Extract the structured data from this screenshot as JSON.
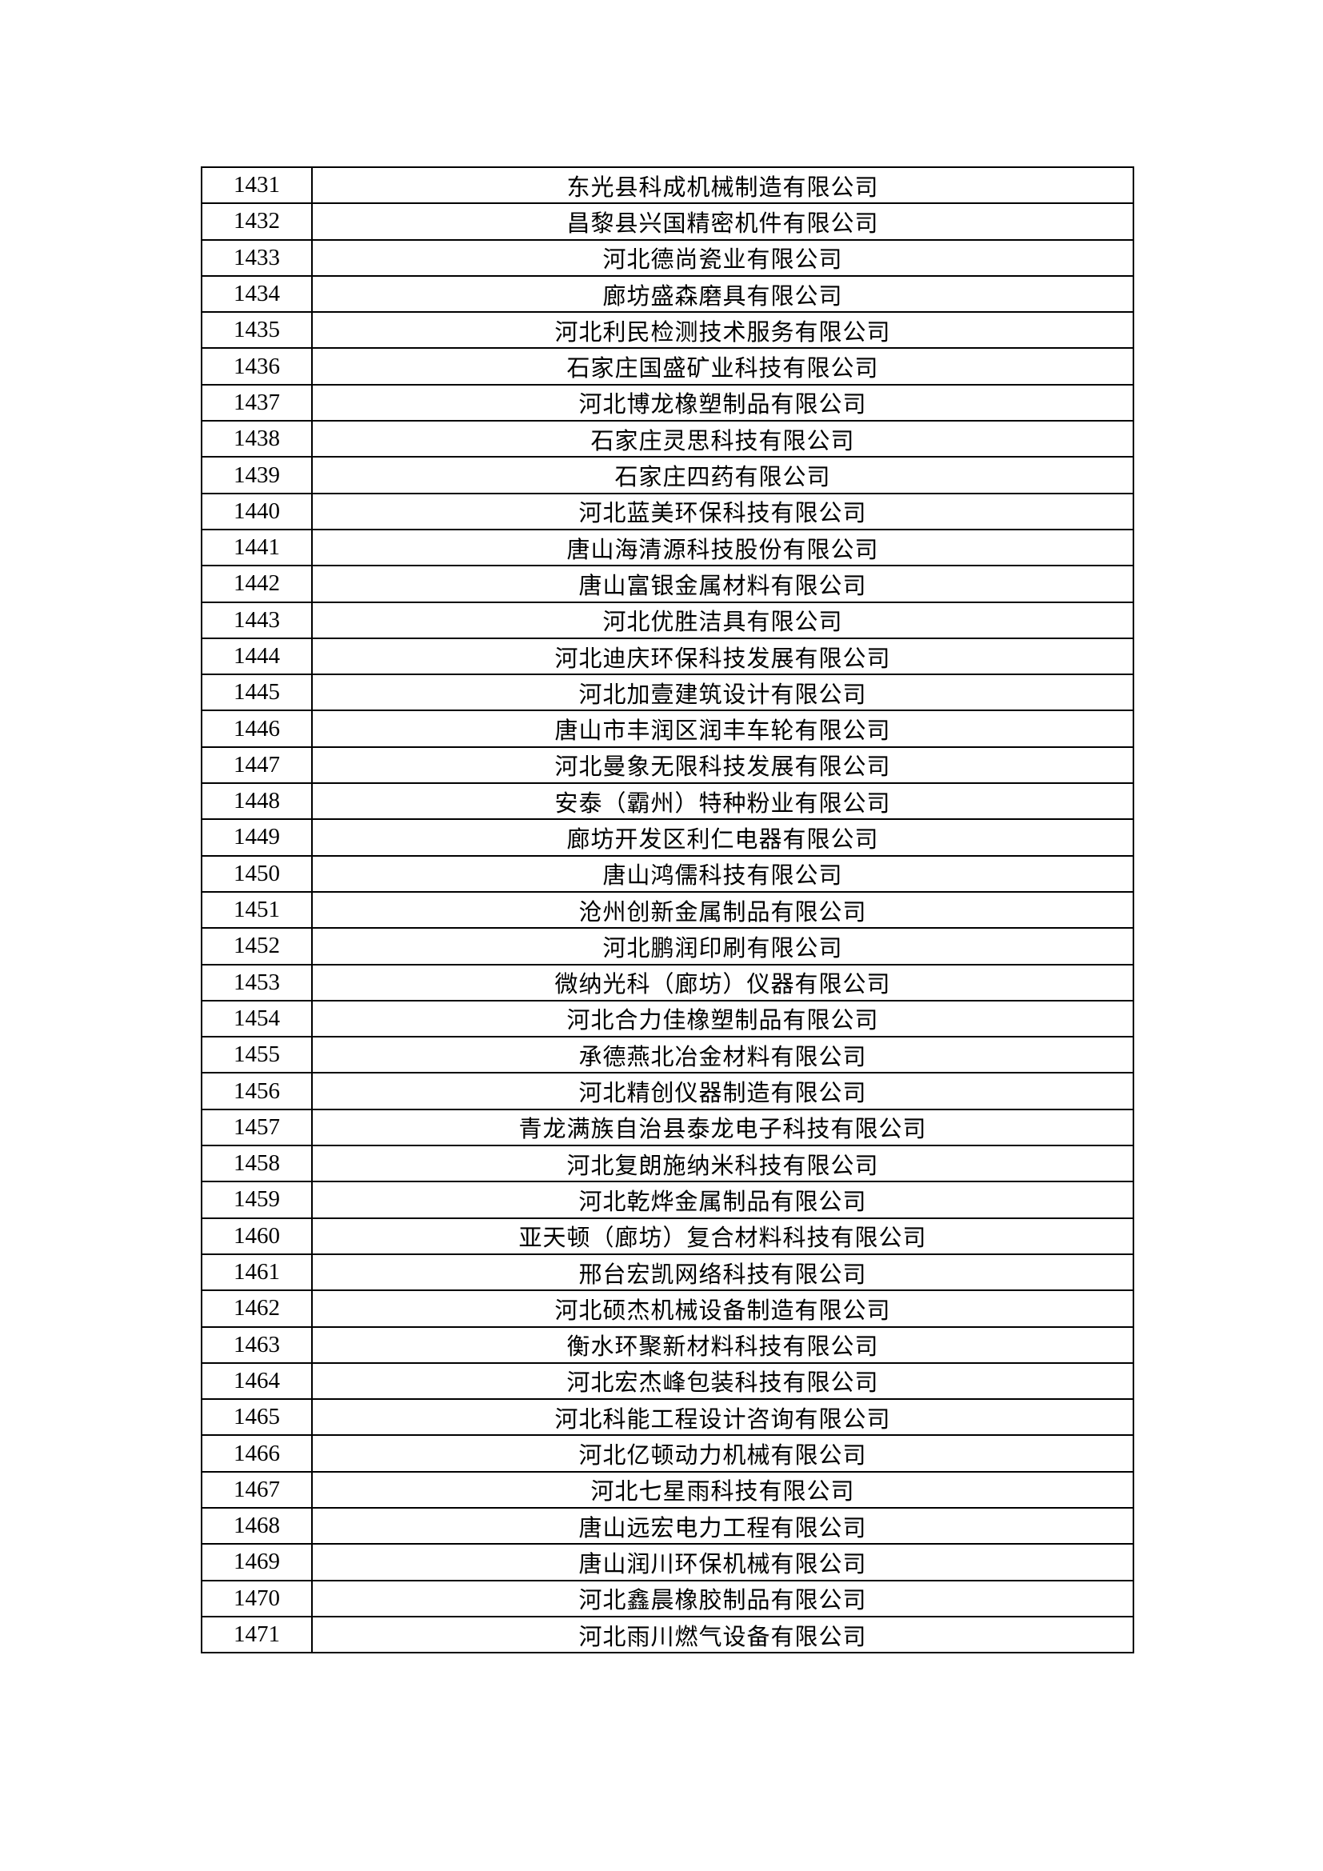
{
  "rows": [
    {
      "no": "1431",
      "name": "东光县科成机械制造有限公司"
    },
    {
      "no": "1432",
      "name": "昌黎县兴国精密机件有限公司"
    },
    {
      "no": "1433",
      "name": "河北德尚瓷业有限公司"
    },
    {
      "no": "1434",
      "name": "廊坊盛森磨具有限公司"
    },
    {
      "no": "1435",
      "name": "河北利民检测技术服务有限公司"
    },
    {
      "no": "1436",
      "name": "石家庄国盛矿业科技有限公司"
    },
    {
      "no": "1437",
      "name": "河北博龙橡塑制品有限公司"
    },
    {
      "no": "1438",
      "name": "石家庄灵思科技有限公司"
    },
    {
      "no": "1439",
      "name": "石家庄四药有限公司"
    },
    {
      "no": "1440",
      "name": "河北蓝美环保科技有限公司"
    },
    {
      "no": "1441",
      "name": "唐山海清源科技股份有限公司"
    },
    {
      "no": "1442",
      "name": "唐山富银金属材料有限公司"
    },
    {
      "no": "1443",
      "name": "河北优胜洁具有限公司"
    },
    {
      "no": "1444",
      "name": "河北迪庆环保科技发展有限公司"
    },
    {
      "no": "1445",
      "name": "河北加壹建筑设计有限公司"
    },
    {
      "no": "1446",
      "name": "唐山市丰润区润丰车轮有限公司"
    },
    {
      "no": "1447",
      "name": "河北曼象无限科技发展有限公司"
    },
    {
      "no": "1448",
      "name": "安泰（霸州）特种粉业有限公司"
    },
    {
      "no": "1449",
      "name": "廊坊开发区利仁电器有限公司"
    },
    {
      "no": "1450",
      "name": "唐山鸿儒科技有限公司"
    },
    {
      "no": "1451",
      "name": "沧州创新金属制品有限公司"
    },
    {
      "no": "1452",
      "name": "河北鹏润印刷有限公司"
    },
    {
      "no": "1453",
      "name": "微纳光科（廊坊）仪器有限公司"
    },
    {
      "no": "1454",
      "name": "河北合力佳橡塑制品有限公司"
    },
    {
      "no": "1455",
      "name": "承德燕北冶金材料有限公司"
    },
    {
      "no": "1456",
      "name": "河北精创仪器制造有限公司"
    },
    {
      "no": "1457",
      "name": "青龙满族自治县泰龙电子科技有限公司"
    },
    {
      "no": "1458",
      "name": "河北复朗施纳米科技有限公司"
    },
    {
      "no": "1459",
      "name": "河北乾烨金属制品有限公司"
    },
    {
      "no": "1460",
      "name": "亚天顿（廊坊）复合材料科技有限公司"
    },
    {
      "no": "1461",
      "name": "邢台宏凯网络科技有限公司"
    },
    {
      "no": "1462",
      "name": "河北硕杰机械设备制造有限公司"
    },
    {
      "no": "1463",
      "name": "衡水环聚新材料科技有限公司"
    },
    {
      "no": "1464",
      "name": "河北宏杰峰包装科技有限公司"
    },
    {
      "no": "1465",
      "name": "河北科能工程设计咨询有限公司"
    },
    {
      "no": "1466",
      "name": "河北亿顿动力机械有限公司"
    },
    {
      "no": "1467",
      "name": "河北七星雨科技有限公司"
    },
    {
      "no": "1468",
      "name": "唐山远宏电力工程有限公司"
    },
    {
      "no": "1469",
      "name": "唐山润川环保机械有限公司"
    },
    {
      "no": "1470",
      "name": "河北鑫晨橡胶制品有限公司"
    },
    {
      "no": "1471",
      "name": "河北雨川燃气设备有限公司"
    }
  ]
}
